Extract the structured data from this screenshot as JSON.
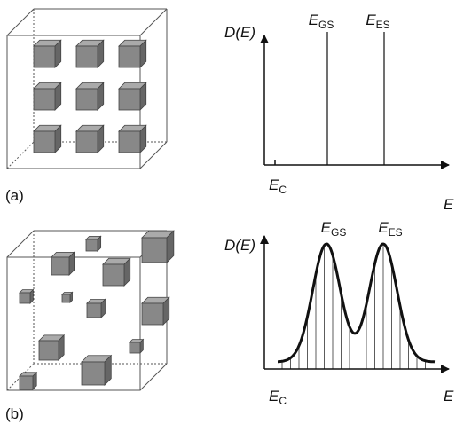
{
  "panels": [
    {
      "label": "(a)",
      "graph": {
        "y_axis_label": "D(E)",
        "x_axis_label": "E",
        "levels": [
          {
            "symbol": "E",
            "subscript": "GS"
          },
          {
            "symbol": "E",
            "subscript": "ES"
          }
        ],
        "origin": {
          "symbol": "E",
          "subscript": "C"
        }
      }
    },
    {
      "label": "(b)",
      "graph": {
        "y_axis_label": "D(E)",
        "x_axis_label": "E",
        "levels": [
          {
            "symbol": "E",
            "subscript": "GS"
          },
          {
            "symbol": "E",
            "subscript": "ES"
          }
        ],
        "origin": {
          "symbol": "E",
          "subscript": "C"
        }
      }
    }
  ]
}
